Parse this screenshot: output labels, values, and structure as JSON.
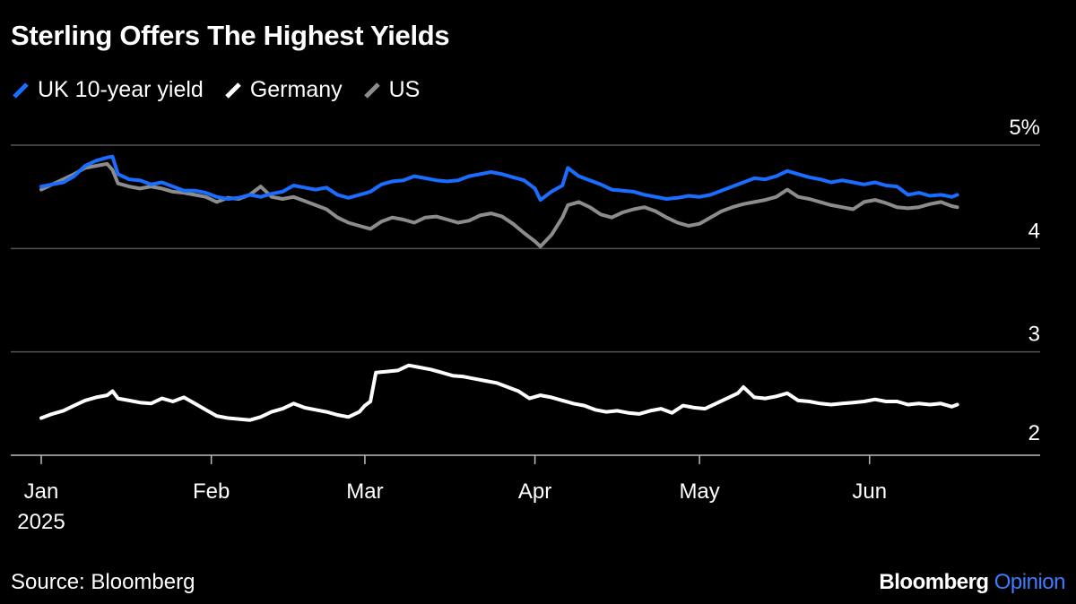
{
  "title": "Sterling Offers The Highest Yields",
  "source": "Source: Bloomberg",
  "brand": {
    "name": "Bloomberg",
    "section": "Opinion",
    "accent_color": "#3d7bff"
  },
  "legend": [
    {
      "label": "UK 10-year yield",
      "color": "#1a6dff"
    },
    {
      "label": "Germany",
      "color": "#ffffff"
    },
    {
      "label": "US",
      "color": "#8c8c8c"
    }
  ],
  "chart_data": {
    "type": "line",
    "title": "Sterling Offers The Highest Yields",
    "y_ticks": [
      "2",
      "3",
      "4",
      "5%"
    ],
    "ylim": [
      1.9,
      5.1
    ],
    "x_ticks": [
      {
        "label": "Jan",
        "sublabel": "2025",
        "x": 0
      },
      {
        "label": "Feb",
        "x": 31
      },
      {
        "label": "Mar",
        "x": 59
      },
      {
        "label": "Apr",
        "x": 90
      },
      {
        "label": "May",
        "x": 120
      },
      {
        "label": "Jun",
        "x": 151
      }
    ],
    "x_unit": "days since Jan 1, 2025",
    "xlim": [
      0,
      170
    ],
    "grid": true,
    "series": [
      {
        "name": "UK 10-year yield",
        "color": "#1a6dff",
        "points": [
          [
            0,
            4.6
          ],
          [
            2,
            4.62
          ],
          [
            4,
            4.64
          ],
          [
            6,
            4.7
          ],
          [
            8,
            4.8
          ],
          [
            10,
            4.85
          ],
          [
            12,
            4.88
          ],
          [
            13,
            4.89
          ],
          [
            14,
            4.72
          ],
          [
            16,
            4.67
          ],
          [
            18,
            4.66
          ],
          [
            20,
            4.62
          ],
          [
            22,
            4.64
          ],
          [
            24,
            4.6
          ],
          [
            26,
            4.56
          ],
          [
            28,
            4.56
          ],
          [
            30,
            4.54
          ],
          [
            32,
            4.5
          ],
          [
            34,
            4.48
          ],
          [
            36,
            4.49
          ],
          [
            38,
            4.52
          ],
          [
            40,
            4.5
          ],
          [
            42,
            4.53
          ],
          [
            44,
            4.55
          ],
          [
            46,
            4.61
          ],
          [
            48,
            4.59
          ],
          [
            50,
            4.57
          ],
          [
            52,
            4.59
          ],
          [
            54,
            4.52
          ],
          [
            56,
            4.49
          ],
          [
            58,
            4.52
          ],
          [
            60,
            4.55
          ],
          [
            62,
            4.62
          ],
          [
            64,
            4.65
          ],
          [
            66,
            4.66
          ],
          [
            68,
            4.7
          ],
          [
            70,
            4.68
          ],
          [
            72,
            4.66
          ],
          [
            74,
            4.65
          ],
          [
            76,
            4.66
          ],
          [
            78,
            4.7
          ],
          [
            80,
            4.72
          ],
          [
            82,
            4.74
          ],
          [
            84,
            4.72
          ],
          [
            86,
            4.69
          ],
          [
            88,
            4.66
          ],
          [
            90,
            4.58
          ],
          [
            91,
            4.47
          ],
          [
            93,
            4.55
          ],
          [
            95,
            4.61
          ],
          [
            96,
            4.78
          ],
          [
            98,
            4.7
          ],
          [
            100,
            4.66
          ],
          [
            102,
            4.62
          ],
          [
            104,
            4.57
          ],
          [
            106,
            4.56
          ],
          [
            108,
            4.55
          ],
          [
            110,
            4.52
          ],
          [
            112,
            4.5
          ],
          [
            114,
            4.48
          ],
          [
            116,
            4.49
          ],
          [
            118,
            4.51
          ],
          [
            120,
            4.5
          ],
          [
            122,
            4.52
          ],
          [
            124,
            4.56
          ],
          [
            126,
            4.6
          ],
          [
            128,
            4.64
          ],
          [
            130,
            4.68
          ],
          [
            132,
            4.67
          ],
          [
            134,
            4.7
          ],
          [
            136,
            4.75
          ],
          [
            138,
            4.72
          ],
          [
            140,
            4.69
          ],
          [
            142,
            4.67
          ],
          [
            144,
            4.64
          ],
          [
            146,
            4.66
          ],
          [
            148,
            4.64
          ],
          [
            150,
            4.62
          ],
          [
            152,
            4.64
          ],
          [
            154,
            4.61
          ],
          [
            156,
            4.6
          ],
          [
            158,
            4.52
          ],
          [
            160,
            4.54
          ],
          [
            162,
            4.51
          ],
          [
            164,
            4.52
          ],
          [
            166,
            4.5
          ],
          [
            167,
            4.52
          ]
        ]
      },
      {
        "name": "Germany",
        "color": "#ffffff",
        "points": [
          [
            0,
            2.36
          ],
          [
            2,
            2.4
          ],
          [
            4,
            2.43
          ],
          [
            6,
            2.48
          ],
          [
            8,
            2.53
          ],
          [
            10,
            2.56
          ],
          [
            12,
            2.58
          ],
          [
            13,
            2.62
          ],
          [
            14,
            2.55
          ],
          [
            16,
            2.53
          ],
          [
            18,
            2.51
          ],
          [
            20,
            2.5
          ],
          [
            22,
            2.55
          ],
          [
            24,
            2.52
          ],
          [
            26,
            2.56
          ],
          [
            28,
            2.5
          ],
          [
            30,
            2.44
          ],
          [
            32,
            2.38
          ],
          [
            34,
            2.36
          ],
          [
            36,
            2.35
          ],
          [
            38,
            2.34
          ],
          [
            40,
            2.37
          ],
          [
            42,
            2.42
          ],
          [
            44,
            2.45
          ],
          [
            46,
            2.5
          ],
          [
            48,
            2.46
          ],
          [
            50,
            2.44
          ],
          [
            52,
            2.42
          ],
          [
            54,
            2.39
          ],
          [
            56,
            2.37
          ],
          [
            58,
            2.42
          ],
          [
            59,
            2.48
          ],
          [
            60,
            2.52
          ],
          [
            61,
            2.8
          ],
          [
            63,
            2.81
          ],
          [
            65,
            2.82
          ],
          [
            67,
            2.87
          ],
          [
            69,
            2.85
          ],
          [
            71,
            2.83
          ],
          [
            73,
            2.8
          ],
          [
            75,
            2.77
          ],
          [
            77,
            2.76
          ],
          [
            79,
            2.74
          ],
          [
            81,
            2.72
          ],
          [
            83,
            2.7
          ],
          [
            85,
            2.66
          ],
          [
            87,
            2.62
          ],
          [
            89,
            2.55
          ],
          [
            91,
            2.58
          ],
          [
            93,
            2.56
          ],
          [
            95,
            2.53
          ],
          [
            97,
            2.5
          ],
          [
            99,
            2.48
          ],
          [
            101,
            2.44
          ],
          [
            103,
            2.42
          ],
          [
            105,
            2.43
          ],
          [
            107,
            2.41
          ],
          [
            109,
            2.4
          ],
          [
            111,
            2.43
          ],
          [
            113,
            2.45
          ],
          [
            115,
            2.41
          ],
          [
            117,
            2.48
          ],
          [
            119,
            2.46
          ],
          [
            121,
            2.45
          ],
          [
            123,
            2.5
          ],
          [
            125,
            2.55
          ],
          [
            127,
            2.6
          ],
          [
            128,
            2.66
          ],
          [
            130,
            2.56
          ],
          [
            132,
            2.55
          ],
          [
            134,
            2.57
          ],
          [
            136,
            2.6
          ],
          [
            138,
            2.53
          ],
          [
            140,
            2.52
          ],
          [
            142,
            2.5
          ],
          [
            144,
            2.49
          ],
          [
            146,
            2.5
          ],
          [
            148,
            2.51
          ],
          [
            150,
            2.52
          ],
          [
            152,
            2.54
          ],
          [
            154,
            2.52
          ],
          [
            156,
            2.52
          ],
          [
            158,
            2.49
          ],
          [
            160,
            2.5
          ],
          [
            162,
            2.49
          ],
          [
            164,
            2.5
          ],
          [
            166,
            2.47
          ],
          [
            167,
            2.49
          ]
        ]
      },
      {
        "name": "US",
        "color": "#8c8c8c",
        "points": [
          [
            0,
            4.57
          ],
          [
            2,
            4.62
          ],
          [
            4,
            4.67
          ],
          [
            6,
            4.72
          ],
          [
            8,
            4.78
          ],
          [
            10,
            4.8
          ],
          [
            12,
            4.82
          ],
          [
            13,
            4.76
          ],
          [
            14,
            4.63
          ],
          [
            16,
            4.6
          ],
          [
            18,
            4.58
          ],
          [
            20,
            4.6
          ],
          [
            22,
            4.58
          ],
          [
            24,
            4.55
          ],
          [
            26,
            4.54
          ],
          [
            28,
            4.52
          ],
          [
            30,
            4.5
          ],
          [
            32,
            4.45
          ],
          [
            34,
            4.49
          ],
          [
            36,
            4.48
          ],
          [
            38,
            4.52
          ],
          [
            40,
            4.6
          ],
          [
            42,
            4.5
          ],
          [
            44,
            4.48
          ],
          [
            46,
            4.5
          ],
          [
            48,
            4.46
          ],
          [
            50,
            4.42
          ],
          [
            52,
            4.38
          ],
          [
            54,
            4.3
          ],
          [
            56,
            4.25
          ],
          [
            58,
            4.22
          ],
          [
            60,
            4.19
          ],
          [
            62,
            4.26
          ],
          [
            64,
            4.3
          ],
          [
            66,
            4.28
          ],
          [
            68,
            4.25
          ],
          [
            70,
            4.3
          ],
          [
            72,
            4.31
          ],
          [
            74,
            4.28
          ],
          [
            76,
            4.25
          ],
          [
            78,
            4.27
          ],
          [
            80,
            4.32
          ],
          [
            82,
            4.34
          ],
          [
            84,
            4.31
          ],
          [
            86,
            4.24
          ],
          [
            88,
            4.15
          ],
          [
            90,
            4.07
          ],
          [
            91,
            4.02
          ],
          [
            93,
            4.13
          ],
          [
            95,
            4.3
          ],
          [
            96,
            4.42
          ],
          [
            98,
            4.45
          ],
          [
            100,
            4.4
          ],
          [
            102,
            4.33
          ],
          [
            104,
            4.3
          ],
          [
            106,
            4.35
          ],
          [
            108,
            4.38
          ],
          [
            110,
            4.4
          ],
          [
            112,
            4.36
          ],
          [
            114,
            4.3
          ],
          [
            116,
            4.25
          ],
          [
            118,
            4.22
          ],
          [
            120,
            4.24
          ],
          [
            122,
            4.3
          ],
          [
            124,
            4.36
          ],
          [
            126,
            4.4
          ],
          [
            128,
            4.43
          ],
          [
            130,
            4.45
          ],
          [
            132,
            4.47
          ],
          [
            134,
            4.5
          ],
          [
            136,
            4.57
          ],
          [
            138,
            4.5
          ],
          [
            140,
            4.48
          ],
          [
            142,
            4.45
          ],
          [
            144,
            4.42
          ],
          [
            146,
            4.4
          ],
          [
            148,
            4.38
          ],
          [
            150,
            4.45
          ],
          [
            152,
            4.47
          ],
          [
            154,
            4.44
          ],
          [
            156,
            4.4
          ],
          [
            158,
            4.39
          ],
          [
            160,
            4.4
          ],
          [
            162,
            4.43
          ],
          [
            164,
            4.45
          ],
          [
            166,
            4.41
          ],
          [
            167,
            4.4
          ]
        ]
      }
    ]
  }
}
